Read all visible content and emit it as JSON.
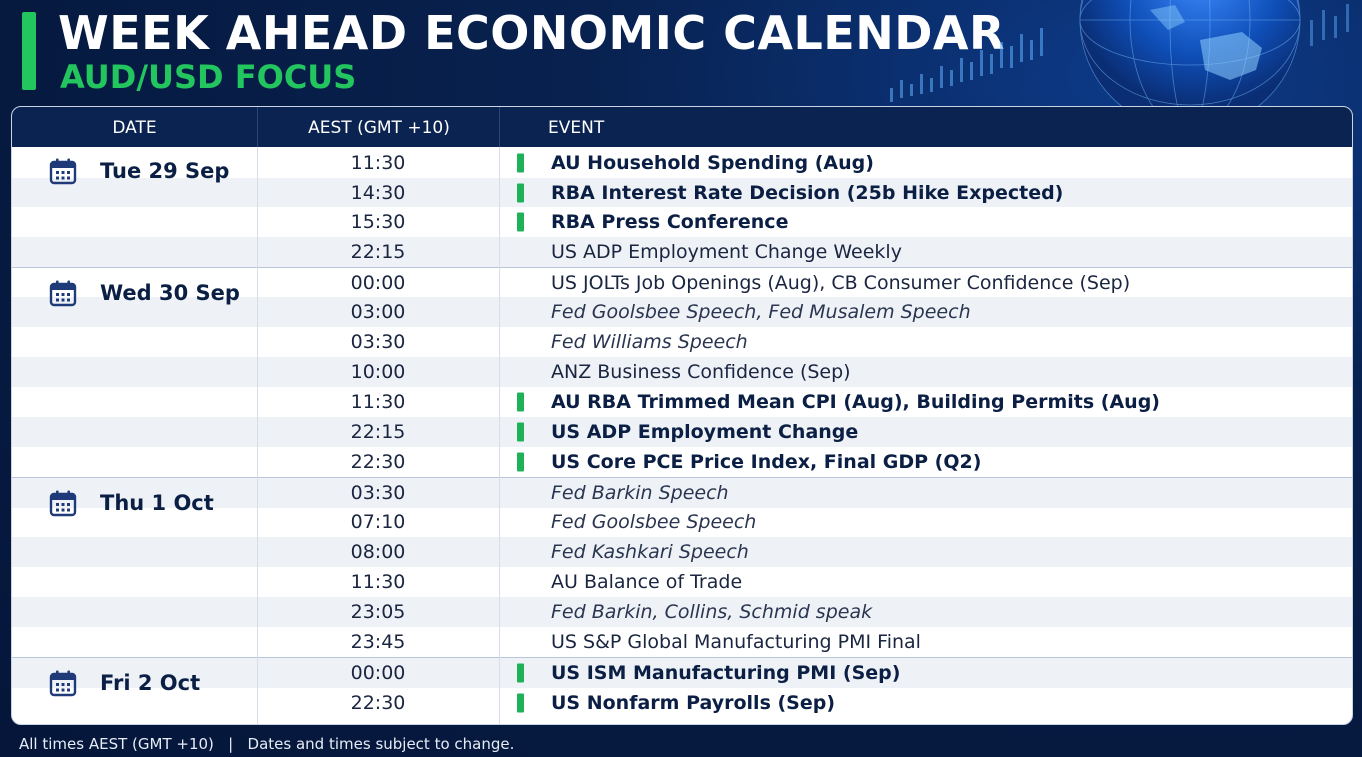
{
  "header": {
    "title": "WEEK AHEAD ECONOMIC CALENDAR",
    "subtitle": "AUD/USD FOCUS"
  },
  "colors": {
    "background": "#061a40",
    "accent": "#22c55e",
    "header_row": "#0b2350",
    "marker": "#1fb15a"
  },
  "table": {
    "columns": [
      "DATE",
      "AEST (GMT +10)",
      "EVENT"
    ],
    "days": [
      {
        "label": "Tue 29 Sep",
        "icon": "calendar-icon"
      },
      {
        "label": "Wed 30 Sep",
        "icon": "calendar-icon"
      },
      {
        "label": "Thu 1 Oct",
        "icon": "calendar-icon"
      },
      {
        "label": "Fri 2 Oct",
        "icon": "calendar-icon"
      }
    ],
    "rows": [
      {
        "time": "11:30",
        "event": "AU Household Spending (Aug)",
        "style": "bold",
        "high_impact": true,
        "day": 0
      },
      {
        "time": "14:30",
        "event": "RBA Interest Rate Decision (25b Hike Expected)",
        "style": "bold",
        "high_impact": true,
        "day": 0
      },
      {
        "time": "15:30",
        "event": "RBA Press Conference",
        "style": "bold",
        "high_impact": true,
        "day": 0
      },
      {
        "time": "22:15",
        "event": "US ADP Employment Change Weekly",
        "style": "normal",
        "high_impact": false,
        "day": 0
      },
      {
        "time": "00:00",
        "event": "US JOLTs Job Openings (Aug), CB Consumer Confidence (Sep)",
        "style": "normal",
        "high_impact": false,
        "day": 1
      },
      {
        "time": "03:00",
        "event": "Fed Goolsbee Speech, Fed Musalem Speech",
        "style": "italic",
        "high_impact": false,
        "day": 1
      },
      {
        "time": "03:30",
        "event": "Fed Williams Speech",
        "style": "italic",
        "high_impact": false,
        "day": 1
      },
      {
        "time": "10:00",
        "event": "ANZ Business Confidence (Sep)",
        "style": "normal",
        "high_impact": false,
        "day": 1
      },
      {
        "time": "11:30",
        "event": "AU RBA Trimmed Mean CPI (Aug), Building Permits (Aug)",
        "style": "bold",
        "high_impact": true,
        "day": 1
      },
      {
        "time": "22:15",
        "event": "US ADP Employment Change",
        "style": "bold",
        "high_impact": true,
        "day": 1
      },
      {
        "time": "22:30",
        "event": "US Core PCE Price Index, Final GDP (Q2)",
        "style": "bold",
        "high_impact": true,
        "day": 1
      },
      {
        "time": "03:30",
        "event": "Fed Barkin Speech",
        "style": "italic",
        "high_impact": false,
        "day": 2
      },
      {
        "time": "07:10",
        "event": "Fed Goolsbee Speech",
        "style": "italic",
        "high_impact": false,
        "day": 2
      },
      {
        "time": "08:00",
        "event": "Fed Kashkari Speech",
        "style": "italic",
        "high_impact": false,
        "day": 2
      },
      {
        "time": "11:30",
        "event": "AU Balance of Trade",
        "style": "normal",
        "high_impact": false,
        "day": 2
      },
      {
        "time": "23:05",
        "event": "Fed Barkin, Collins, Schmid speak",
        "style": "italic",
        "high_impact": false,
        "day": 2
      },
      {
        "time": "23:45",
        "event": "US S&P Global Manufacturing PMI Final",
        "style": "normal",
        "high_impact": false,
        "day": 2
      },
      {
        "time": "00:00",
        "event": "US ISM Manufacturing PMI (Sep)",
        "style": "bold",
        "high_impact": true,
        "day": 3
      },
      {
        "time": "22:30",
        "event": "US Nonfarm Payrolls (Sep)",
        "style": "bold",
        "high_impact": true,
        "day": 3
      }
    ]
  },
  "footer": {
    "note": "All times AEST (GMT +10)   |   Dates and times subject to change."
  }
}
